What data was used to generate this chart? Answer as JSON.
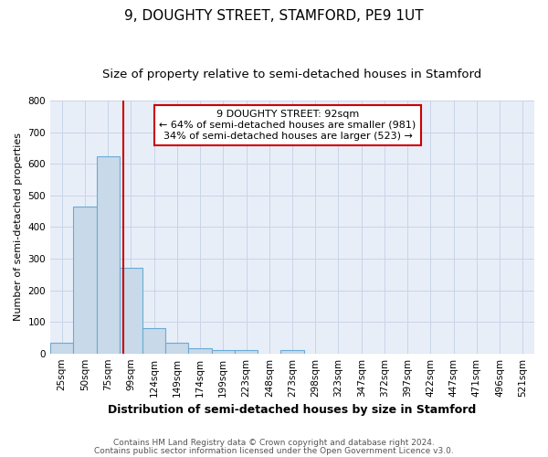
{
  "title": "9, DOUGHTY STREET, STAMFORD, PE9 1UT",
  "subtitle": "Size of property relative to semi-detached houses in Stamford",
  "xlabel": "Distribution of semi-detached houses by size in Stamford",
  "ylabel": "Number of semi-detached properties",
  "bin_edges": [
    12.5,
    37.5,
    62.5,
    87.5,
    112.5,
    137.5,
    162.5,
    187.5,
    212.5,
    237.5,
    262.5,
    287.5,
    312.5,
    337.5,
    362.5,
    387.5,
    412.5,
    437.5,
    462.5,
    487.5,
    512.5,
    537.5
  ],
  "bin_labels": [
    "25sqm",
    "50sqm",
    "75sqm",
    "99sqm",
    "124sqm",
    "149sqm",
    "174sqm",
    "199sqm",
    "223sqm",
    "248sqm",
    "273sqm",
    "298sqm",
    "323sqm",
    "347sqm",
    "372sqm",
    "397sqm",
    "422sqm",
    "447sqm",
    "471sqm",
    "496sqm",
    "521sqm"
  ],
  "bar_heights": [
    35,
    465,
    625,
    270,
    80,
    35,
    15,
    10,
    10,
    0,
    10,
    0,
    0,
    0,
    0,
    0,
    0,
    0,
    0,
    0,
    0
  ],
  "bar_color": "#c8d9ea",
  "bar_edge_color": "#6aaad4",
  "property_size": 92,
  "vline_color": "#cc0000",
  "annotation_line1": "9 DOUGHTY STREET: 92sqm",
  "annotation_line2": "← 64% of semi-detached houses are smaller (981)",
  "annotation_line3": "34% of semi-detached houses are larger (523) →",
  "annotation_box_color": "#ffffff",
  "annotation_box_edge": "#cc0000",
  "ylim": [
    0,
    800
  ],
  "yticks": [
    0,
    100,
    200,
    300,
    400,
    500,
    600,
    700,
    800
  ],
  "grid_color": "#c8d4e8",
  "bg_color": "#e8eef8",
  "footer_line1": "Contains HM Land Registry data © Crown copyright and database right 2024.",
  "footer_line2": "Contains public sector information licensed under the Open Government Licence v3.0.",
  "title_fontsize": 11,
  "subtitle_fontsize": 9.5,
  "xlabel_fontsize": 9,
  "ylabel_fontsize": 8,
  "tick_fontsize": 7.5,
  "footer_fontsize": 6.5
}
